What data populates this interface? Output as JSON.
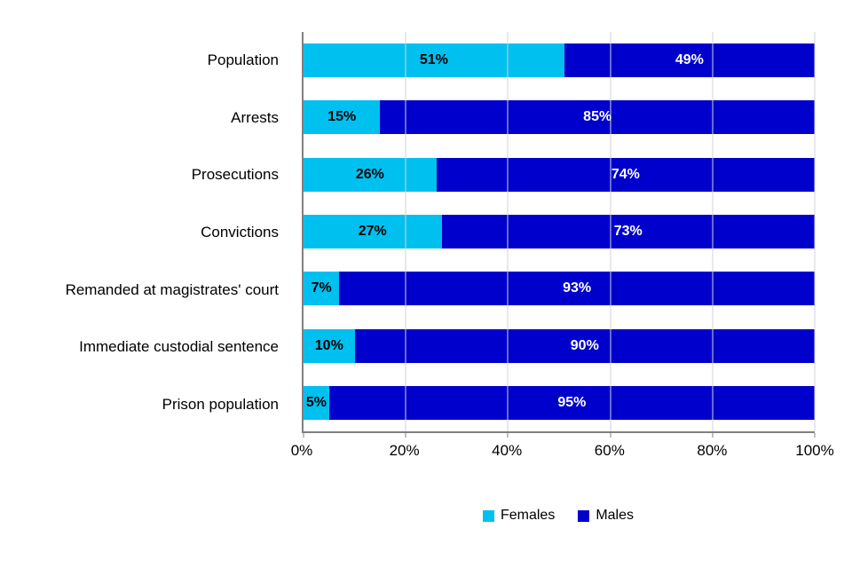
{
  "chart_data": {
    "type": "bar",
    "orientation": "horizontal",
    "stacked": true,
    "title": "",
    "xlabel": "",
    "ylabel": "",
    "categories": [
      "Population",
      "Arrests",
      "Prosecutions",
      "Convictions",
      "Remanded at magistrates' court",
      "Immediate custodial sentence",
      "Prison population"
    ],
    "series": [
      {
        "name": "Females",
        "color": "#00c0f0",
        "label_color": "#000000",
        "values": [
          51,
          15,
          26,
          27,
          7,
          10,
          5
        ]
      },
      {
        "name": "Males",
        "color": "#0000cc",
        "label_color": "#ffffff",
        "values": [
          49,
          85,
          74,
          73,
          93,
          90,
          95
        ]
      }
    ],
    "x_ticks": [
      "0%",
      "20%",
      "40%",
      "60%",
      "80%",
      "100%"
    ],
    "x_tick_values": [
      0,
      20,
      40,
      60,
      80,
      100
    ],
    "xlim": [
      0,
      100
    ],
    "grid": "vertical",
    "gridline_color": "#d3d3d3",
    "axis_color": "#808080",
    "legend_position": "bottom"
  }
}
